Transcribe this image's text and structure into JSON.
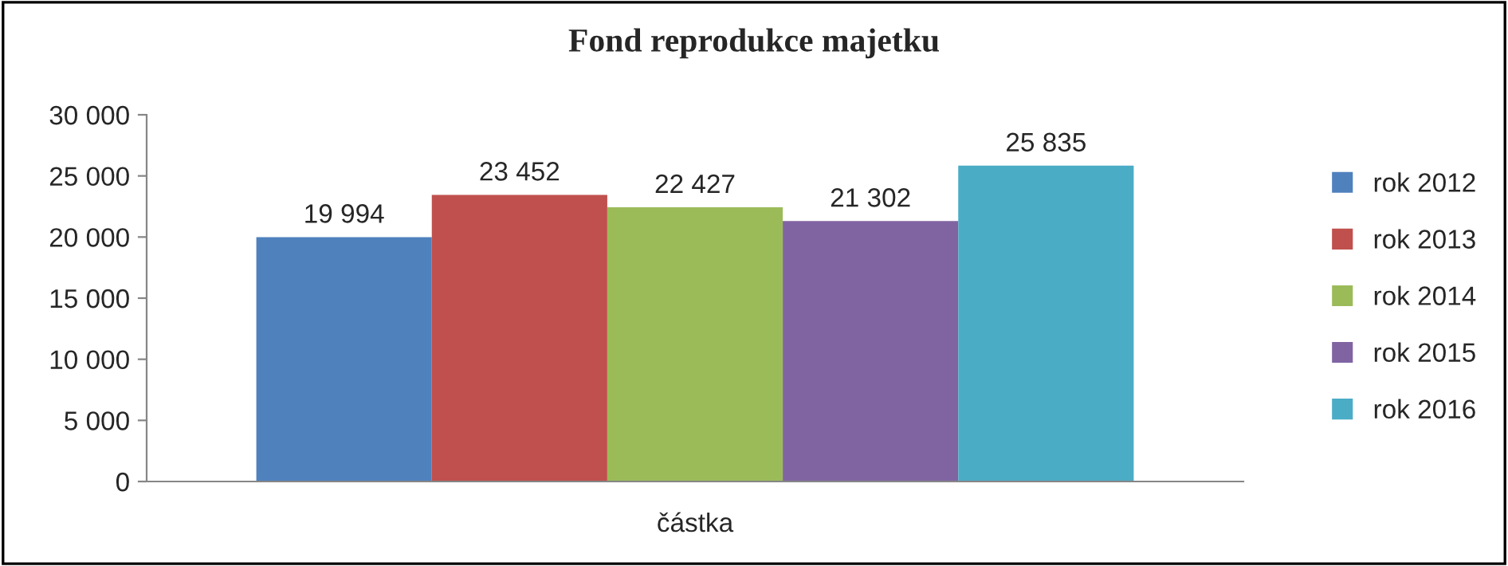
{
  "chart_data": {
    "type": "bar",
    "title": "Fond reprodukce majetku",
    "categories": [
      "částka"
    ],
    "series": [
      {
        "name": "rok 2012",
        "color": "#4f81bd",
        "values": [
          19994
        ],
        "value_labels": [
          "19 994"
        ]
      },
      {
        "name": "rok 2013",
        "color": "#c0504d",
        "values": [
          23452
        ],
        "value_labels": [
          "23 452"
        ]
      },
      {
        "name": "rok 2014",
        "color": "#9bbb59",
        "values": [
          22427
        ],
        "value_labels": [
          "22 427"
        ]
      },
      {
        "name": "rok 2015",
        "color": "#8064a2",
        "values": [
          21302
        ],
        "value_labels": [
          "21 302"
        ]
      },
      {
        "name": "rok 2016",
        "color": "#4bacc6",
        "values": [
          25835
        ],
        "value_labels": [
          "25 835"
        ]
      }
    ],
    "ylim": [
      0,
      30000
    ],
    "yticks": [
      {
        "value": 0,
        "label": "0"
      },
      {
        "value": 5000,
        "label": "5 000"
      },
      {
        "value": 10000,
        "label": "10 000"
      },
      {
        "value": 15000,
        "label": "15 000"
      },
      {
        "value": 20000,
        "label": "20 000"
      },
      {
        "value": 25000,
        "label": "25 000"
      },
      {
        "value": 30000,
        "label": "30 000"
      }
    ],
    "grid": false,
    "legend": "right"
  }
}
